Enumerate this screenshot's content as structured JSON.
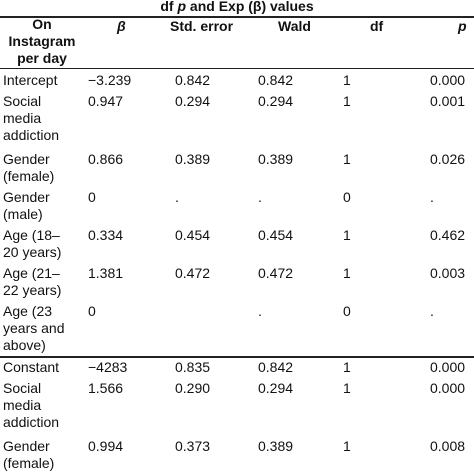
{
  "title": {
    "part1": "df ",
    "p": "p",
    "part2": " and Exp (β) values"
  },
  "header": {
    "col0": [
      "On",
      "Instagram",
      "per day"
    ],
    "beta": "β",
    "std_error": "Std. error",
    "wald": "Wald",
    "df": "df",
    "p": "p"
  },
  "rows": [
    {
      "label": [
        "Intercept"
      ],
      "beta": "−3.239",
      "se": "0.842",
      "wald": "0.842",
      "df": "1",
      "p": "0.000"
    },
    {
      "label": [
        "Social",
        "media",
        "addiction"
      ],
      "beta": "0.947",
      "se": "0.294",
      "wald": "0.294",
      "df": "1",
      "p": "0.001"
    },
    {
      "label": [
        "Gender",
        "(female)"
      ],
      "beta": "0.866",
      "se": "0.389",
      "wald": "0.389",
      "df": "1",
      "p": "0.026"
    },
    {
      "label": [
        "Gender",
        "(male)"
      ],
      "beta": "0",
      "se": ".",
      "wald": ".",
      "df": "0",
      "p": "."
    },
    {
      "label": [
        "Age (18–",
        "20 years)"
      ],
      "beta": "0.334",
      "se": "0.454",
      "wald": "0.454",
      "df": "1",
      "p": "0.462"
    },
    {
      "label": [
        "Age (21–",
        "22 years)"
      ],
      "beta": "1.381",
      "se": "0.472",
      "wald": "0.472",
      "df": "1",
      "p": "0.003"
    },
    {
      "label": [
        "Age (23",
        "years and",
        "above)"
      ],
      "beta": "0",
      "se": "",
      "wald": ".",
      "df": "0",
      "p": "."
    },
    {
      "label": [
        "Constant"
      ],
      "beta": "−4283",
      "se": "0.835",
      "wald": "0.842",
      "df": "1",
      "p": "0.000"
    },
    {
      "label": [
        "Social",
        "media",
        "addiction"
      ],
      "beta": "1.566",
      "se": "0.290",
      "wald": "0.294",
      "df": "1",
      "p": "0.000"
    },
    {
      "label": [
        "Gender",
        "(female)"
      ],
      "beta": "0.994",
      "se": "0.373",
      "wald": "0.389",
      "df": "1",
      "p": "0.008"
    }
  ]
}
